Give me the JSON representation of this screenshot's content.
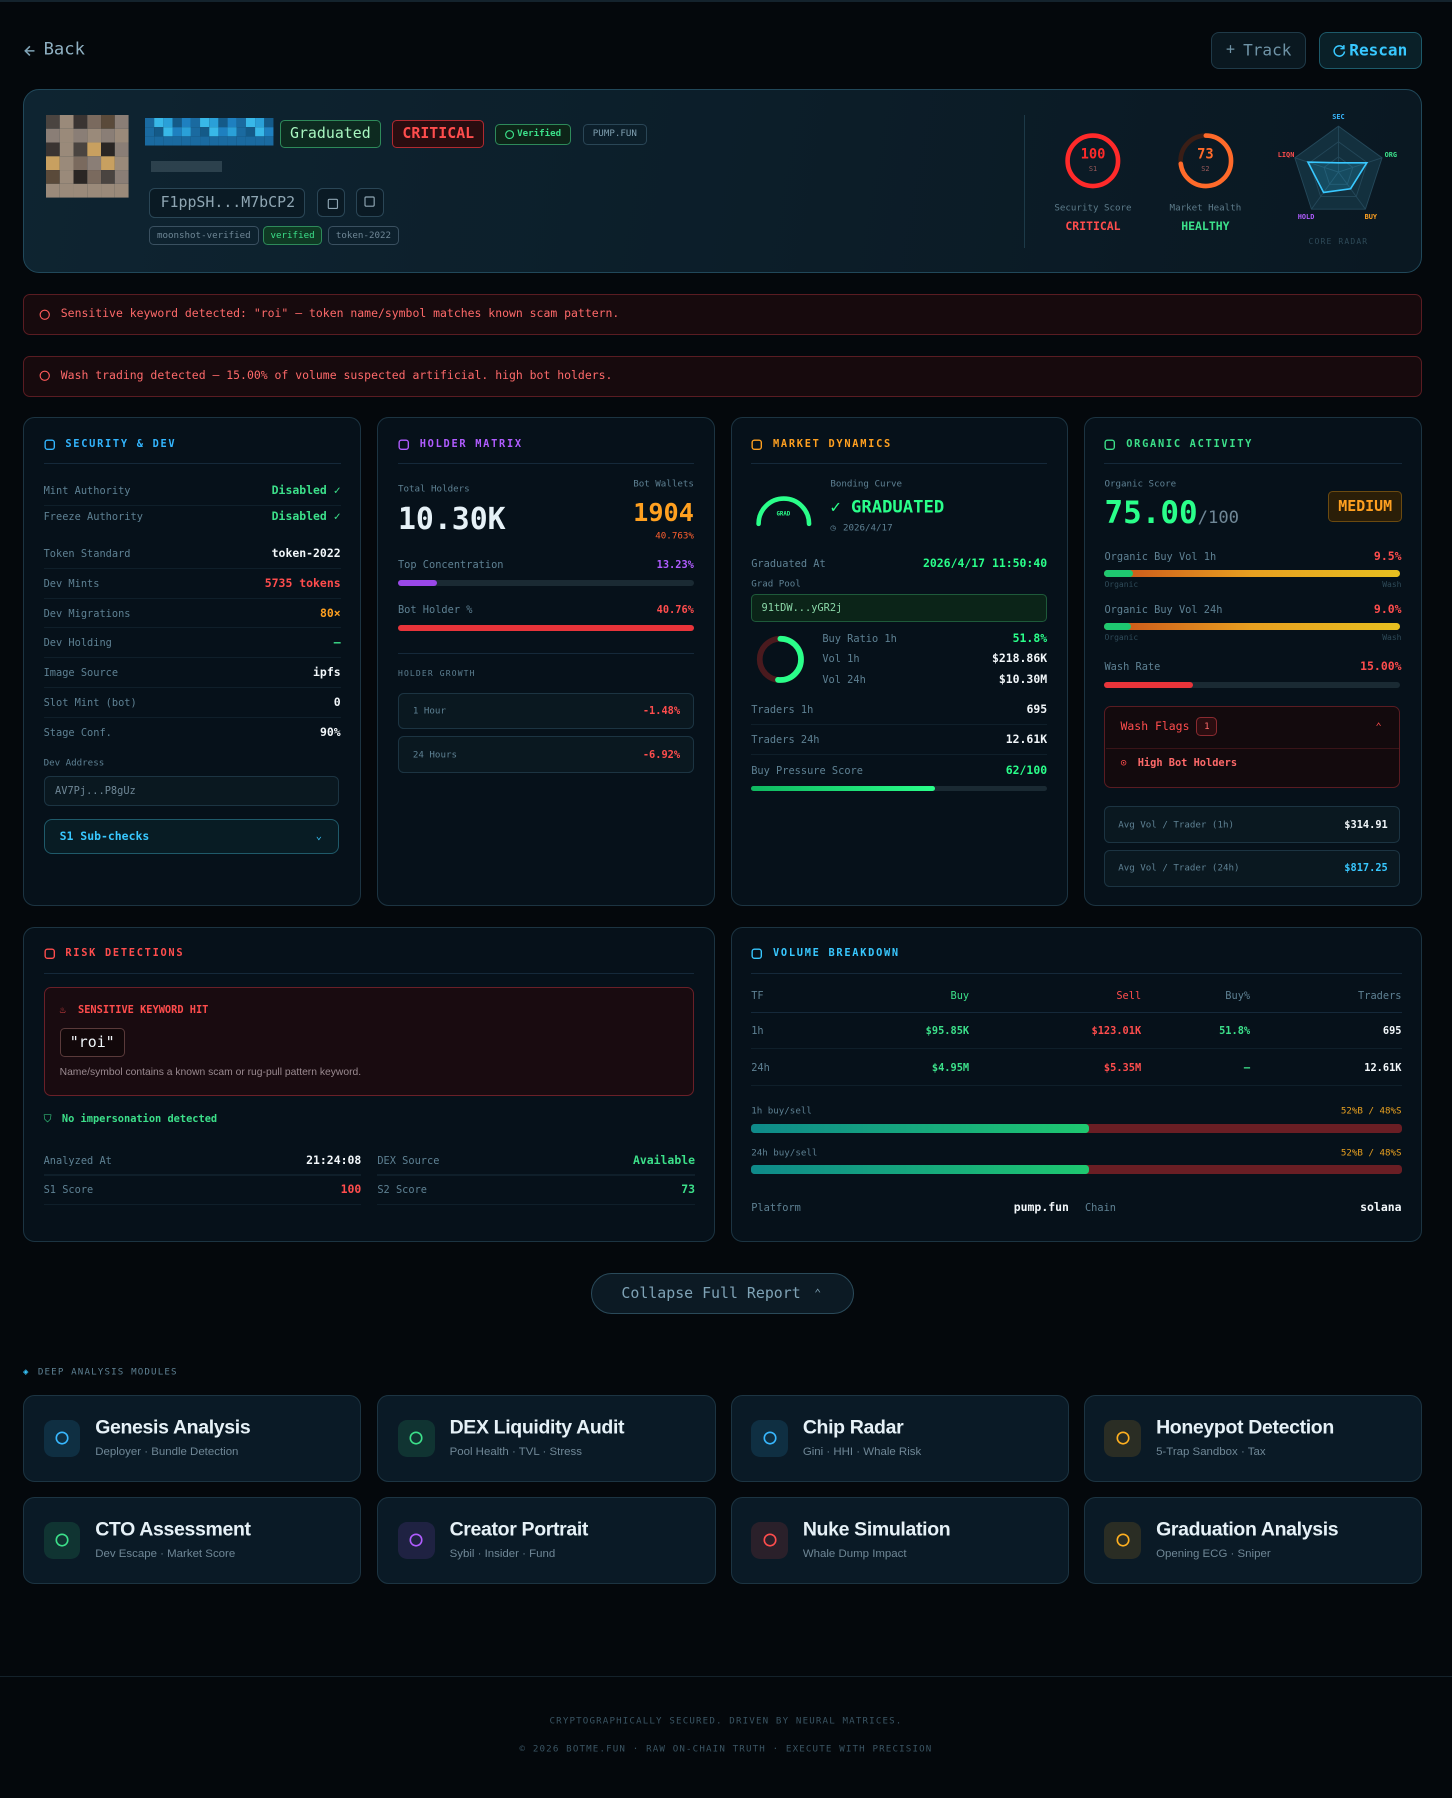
{
  "nav": {
    "back": "Back",
    "track": "Track",
    "rescan": "Rescan"
  },
  "header": {
    "badges": {
      "graduated": "Graduated",
      "risk": "CRITICAL",
      "verified": "Verified",
      "platform": "PUMP.FUN"
    },
    "address": "F1ppSH...M7bCP2",
    "tags": [
      "moonshot-verified",
      "verified",
      "token-2022"
    ],
    "scores": [
      {
        "value": 100,
        "lim": [
          0,
          100
        ],
        "sub": "S1",
        "label": "Security Score",
        "status": "CRITICAL",
        "color": "#ff2a2a"
      },
      {
        "value": 73,
        "lim": [
          0,
          100
        ],
        "sub": "S2",
        "label": "Market Health",
        "status": "HEALTHY",
        "color": "#ff6a2a"
      }
    ],
    "radar": {
      "axes": [
        "SEC",
        "ORG",
        "BUY",
        "HOLD",
        "LIQN"
      ],
      "values": [
        20,
        65,
        45,
        55,
        70
      ],
      "lim": [
        0,
        100
      ],
      "caption": "CORE RADAR"
    }
  },
  "alerts": [
    "Sensitive keyword detected: \"roi\" — token name/symbol matches known scam pattern.",
    "Wash trading detected — 15.00% of volume suspected artificial. high bot holders."
  ],
  "security": {
    "title": "SECURITY & DEV",
    "rows": [
      {
        "label": "Mint Authority",
        "value": "Disabled ✓",
        "color": "#3ce08a"
      },
      {
        "label": "Freeze Authority",
        "value": "Disabled ✓",
        "color": "#3ce08a"
      },
      {
        "label": "Token Standard",
        "value": "token-2022",
        "color": "#f2f7fa"
      },
      {
        "label": "Dev Mints",
        "value": "5735 tokens",
        "color": "#ff4d4d"
      },
      {
        "label": "Dev Migrations",
        "value": "80×",
        "color": "#ffa020"
      },
      {
        "label": "Dev Holding",
        "value": "—",
        "color": "#3ce08a"
      },
      {
        "label": "Image Source",
        "value": "ipfs",
        "color": "#f2f7fa"
      },
      {
        "label": "Slot Mint (bot)",
        "value": "0",
        "color": "#f2f7fa"
      },
      {
        "label": "Stage Conf.",
        "value": "90%",
        "color": "#f2f7fa"
      }
    ],
    "dev_address_label": "Dev Address",
    "dev_address": "AV7Pj...P8gUz",
    "subchecks": "S1 Sub-checks"
  },
  "holders": {
    "title": "HOLDER MATRIX",
    "total_label": "Total Holders",
    "total": "10.30K",
    "bot_label": "Bot Wallets",
    "bot": "1904",
    "bot_pct": "40.763%",
    "top_conc": {
      "label": "Top Concentration",
      "value": 13.23,
      "value_label": "13.23%",
      "lim": [
        0,
        100
      ]
    },
    "bot_holder": {
      "label": "Bot Holder %",
      "value": 40.76,
      "value_label": "40.76%",
      "lim": [
        0,
        40
      ]
    },
    "growth_title": "HOLDER GROWTH",
    "growth": [
      {
        "label": "1 Hour",
        "value": "-1.48%"
      },
      {
        "label": "24 Hours",
        "value": "-6.92%"
      }
    ]
  },
  "market": {
    "title": "MARKET DYNAMICS",
    "curve_label": "Bonding Curve",
    "gauge_label": "GRAD",
    "status": "✓ GRADUATED",
    "date": "2026/4/17",
    "graduated_at_label": "Graduated At",
    "graduated_at": "2026/4/17 11:50:40",
    "grad_pool_label": "Grad Pool",
    "grad_pool": "91tDW...yGR2j",
    "buy_ratio": {
      "label": "Buy Ratio 1h",
      "value": 51.8,
      "value_label": "51.8%",
      "lim": [
        0,
        100
      ]
    },
    "vol": [
      {
        "label": "Vol 1h",
        "value": "$218.86K"
      },
      {
        "label": "Vol 24h",
        "value": "$10.30M"
      }
    ],
    "rows": [
      {
        "label": "Traders 1h",
        "value": "695"
      },
      {
        "label": "Traders 24h",
        "value": "12.61K"
      }
    ],
    "pressure": {
      "label": "Buy Pressure Score",
      "value": 62,
      "value_label": "62/100",
      "lim": [
        0,
        100
      ]
    }
  },
  "organic": {
    "title": "ORGANIC ACTIVITY",
    "score_label": "Organic Score",
    "score": "75.00",
    "score_max": "/100",
    "level": "MEDIUM",
    "bars": [
      {
        "label": "Organic Buy Vol 1h",
        "value": 9.5,
        "value_label": "9.5%"
      },
      {
        "label": "Organic Buy Vol 24h",
        "value": 9.0,
        "value_label": "9.0%"
      }
    ],
    "bar_lim": [
      0,
      100
    ],
    "bar_ends": [
      "Organic",
      "Wash"
    ],
    "wash": {
      "label": "Wash Rate",
      "value": 15,
      "value_label": "15.00%",
      "lim": [
        0,
        50
      ]
    },
    "flags_title": "Wash Flags",
    "flags_count": "1",
    "flags": [
      "High Bot Holders"
    ],
    "avg": [
      {
        "label": "Avg Vol / Trader (1h)",
        "value": "$314.91"
      },
      {
        "label": "Avg Vol / Trader (24h)",
        "value": "$817.25"
      }
    ]
  },
  "risk": {
    "title": "RISK DETECTIONS",
    "hit_title": "SENSITIVE KEYWORD HIT",
    "keyword": "\"roi\"",
    "hit_desc": "Name/symbol contains a known scam or rug-pull pattern keyword.",
    "impersonation": "No impersonation detected",
    "facts": [
      {
        "label": "Analyzed At",
        "value": "21:24:08",
        "color": "#f2f7fa"
      },
      {
        "label": "DEX Source",
        "value": "Available",
        "color": "#3ce08a"
      },
      {
        "label": "S1 Score",
        "value": "100",
        "color": "#ff4d4d"
      },
      {
        "label": "S2 Score",
        "value": "73",
        "color": "#3ce08a"
      }
    ]
  },
  "volume": {
    "title": "VOLUME BREAKDOWN",
    "columns": [
      "TF",
      "Buy",
      "Sell",
      "Buy%",
      "Traders"
    ],
    "rows": [
      [
        "1h",
        "$95.85K",
        "$123.01K",
        "51.8%",
        "695"
      ],
      [
        "24h",
        "$4.95M",
        "$5.35M",
        "—",
        "12.61K"
      ]
    ],
    "splits": [
      {
        "label": "1h buy/sell",
        "value": 52,
        "value_label": "52%B / 48%S"
      },
      {
        "label": "24h buy/sell",
        "value": 52,
        "value_label": "52%B / 48%S"
      }
    ],
    "split_lim": [
      0,
      100
    ],
    "platform_label": "Platform",
    "platform": "pump.fun",
    "chain_label": "Chain",
    "chain": "solana"
  },
  "collapse": "Collapse Full Report",
  "modules": {
    "title": "DEEP ANALYSIS MODULES",
    "items": [
      {
        "name": "Genesis Analysis",
        "desc": "Deployer · Bundle Detection",
        "color": "#38b8ff"
      },
      {
        "name": "DEX Liquidity Audit",
        "desc": "Pool Health · TVL · Stress",
        "color": "#3ce08a"
      },
      {
        "name": "Chip Radar",
        "desc": "Gini · HHI · Whale Risk",
        "color": "#38b8ff"
      },
      {
        "name": "Honeypot Detection",
        "desc": "5-Trap Sandbox · Tax",
        "color": "#ffb020"
      },
      {
        "name": "CTO Assessment",
        "desc": "Dev Escape · Market Score",
        "color": "#3ce08a"
      },
      {
        "name": "Creator Portrait",
        "desc": "Sybil · Insider · Fund",
        "color": "#b05cff"
      },
      {
        "name": "Nuke Simulation",
        "desc": "Whale Dump Impact",
        "color": "#ff4d4d"
      },
      {
        "name": "Graduation Analysis",
        "desc": "Opening ECG · Sniper",
        "color": "#ffb020"
      }
    ]
  },
  "footer": [
    "CRYPTOGRAPHICALLY SECURED. DRIVEN BY NEURAL MATRICES.",
    "© 2026 BOTME.FUN · RAW ON-CHAIN TRUTH · EXECUTE WITH PRECISION"
  ]
}
